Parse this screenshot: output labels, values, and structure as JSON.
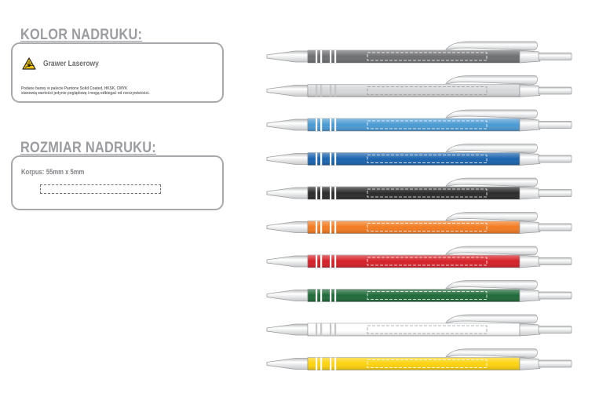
{
  "print_color": {
    "title": "KOLOR NADRUKU:",
    "method_icon": "laser-warning-icon",
    "method": "Grawer Laserowy",
    "note_line1": "Podane barwy w palecie Pantone Solid Coated, HKSK, CMYK",
    "note_line2": "stanowią wartości jedynie poglądową i mogą odbiegać od rzeczywistości."
  },
  "print_size": {
    "title": "ROZMIAR NADRUKU:",
    "area_label": "Korpus:",
    "area_value": "55mm x 5mm"
  },
  "pens": [
    {
      "color": "#6e6f71"
    },
    {
      "color": "#d6d7d9"
    },
    {
      "color": "#4a9ad4"
    },
    {
      "color": "#1a63ad"
    },
    {
      "color": "#2b2b2b"
    },
    {
      "color": "#f27b21"
    },
    {
      "color": "#d52027"
    },
    {
      "color": "#1f6a38"
    },
    {
      "color": "#ffffff"
    },
    {
      "color": "#fcd20f"
    }
  ]
}
